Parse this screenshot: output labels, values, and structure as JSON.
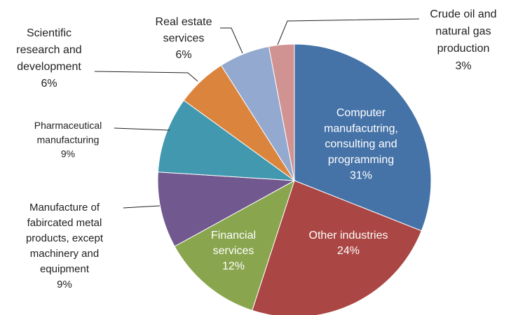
{
  "chart_data": {
    "type": "pie",
    "categories": [
      "Computer\nmanufacutring,\nconsulting and\nprogramming",
      "Other industries",
      "Financial\nservices",
      "Manufacture of\nfabircated metal\nproducts, except\nmachinery and\nequipment",
      "Pharmaceutical\nmanufacturing",
      "Scientific\nresearch and\ndevelopment",
      "Real estate\nservices",
      "Crude oil and\nnatural gas\nproduction"
    ],
    "values": [
      31,
      24,
      12,
      9,
      9,
      6,
      6,
      3
    ],
    "value_labels": [
      "31%",
      "24%",
      "12%",
      "9%",
      "9%",
      "6%",
      "6%",
      "3%"
    ],
    "colors": [
      "#4572a7",
      "#aa4643",
      "#89a54e",
      "#71588f",
      "#4198af",
      "#db843d",
      "#93a9cf",
      "#d19392"
    ]
  }
}
